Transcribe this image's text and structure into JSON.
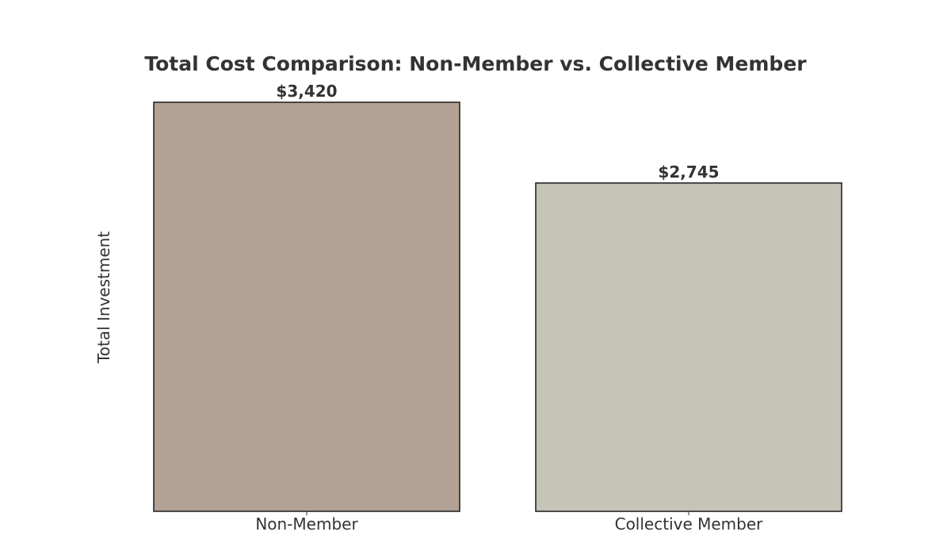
{
  "chart_data": {
    "type": "bar",
    "title": "Total Cost Comparison: Non-Member vs. Collective Member",
    "xlabel": "",
    "ylabel": "Total Investment",
    "categories": [
      "Non-Member",
      "Collective Member"
    ],
    "values": [
      3420,
      2745
    ],
    "value_labels": [
      "$3,420",
      "$2,745"
    ],
    "colors": [
      "#b3a195",
      "#c6c4b7"
    ],
    "ylim": [
      0,
      3420
    ],
    "grid": false,
    "legend": "none"
  }
}
